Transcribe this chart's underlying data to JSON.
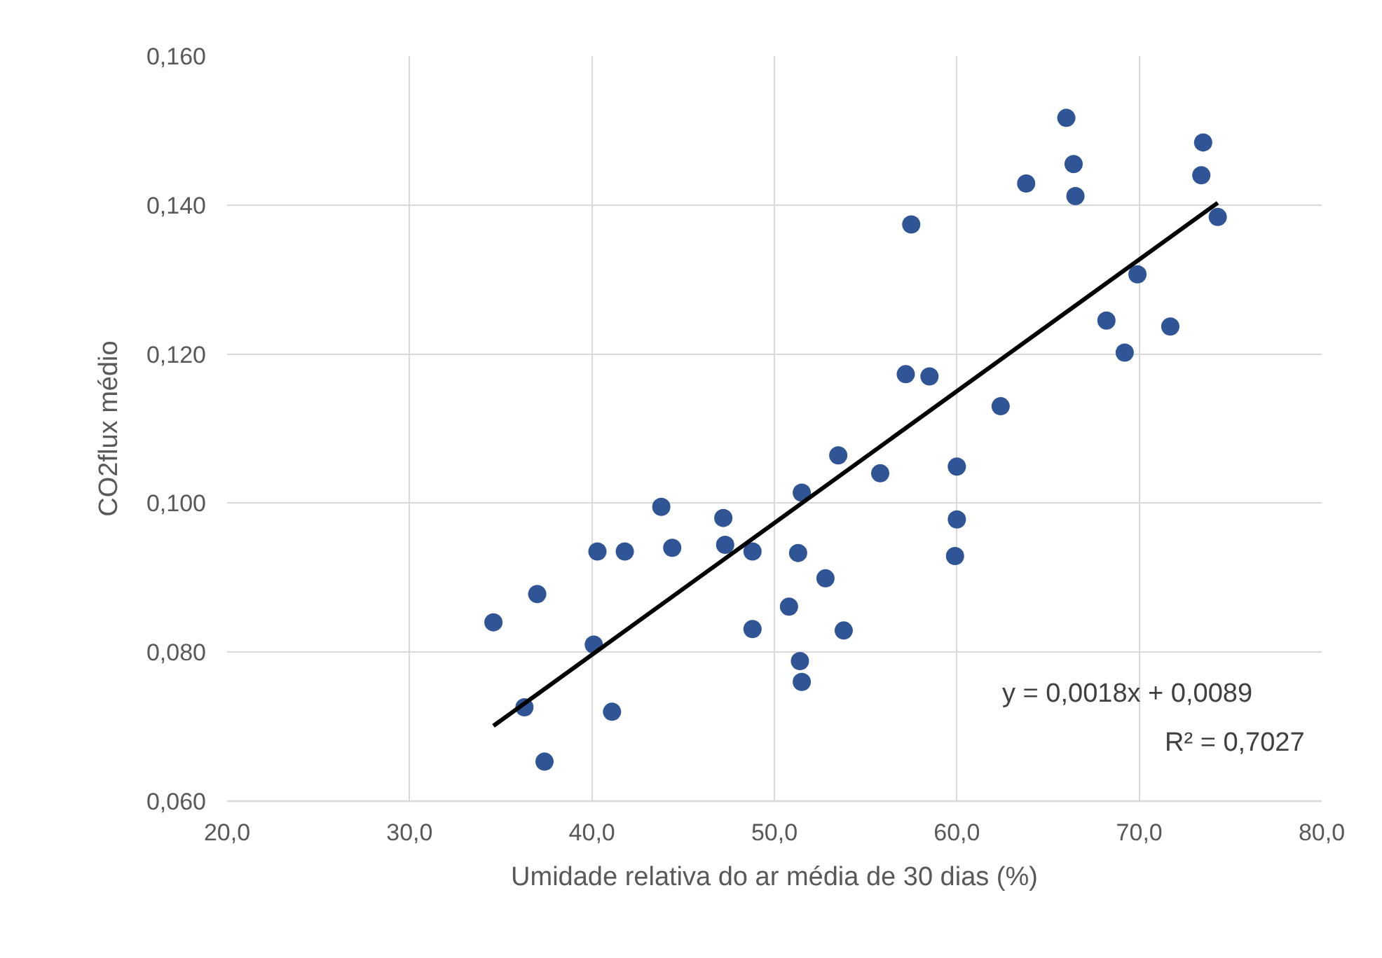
{
  "chart_data": {
    "type": "scatter",
    "xlabel": "Umidade relativa do ar média de 30 dias (%)",
    "ylabel": "CO2flux médio",
    "xlim": [
      20,
      80
    ],
    "xticks": [
      {
        "value": 20,
        "label": "20,0"
      },
      {
        "value": 30,
        "label": "30,0"
      },
      {
        "value": 40,
        "label": "40,0"
      },
      {
        "value": 50,
        "label": "50,0"
      },
      {
        "value": 60,
        "label": "60,0"
      },
      {
        "value": 70,
        "label": "70,0"
      },
      {
        "value": 80,
        "label": "80,0"
      }
    ],
    "ylim": [
      0.06,
      0.16
    ],
    "yticks": [
      {
        "value": 0.06,
        "label": "0,060"
      },
      {
        "value": 0.08,
        "label": "0,080"
      },
      {
        "value": 0.1,
        "label": "0,100"
      },
      {
        "value": 0.12,
        "label": "0,120"
      },
      {
        "value": 0.14,
        "label": "0,140"
      },
      {
        "value": 0.16,
        "label": "0,160"
      }
    ],
    "grid": true,
    "series": [
      {
        "marker": "circle",
        "color": "#2f5597",
        "x": [
          34.6,
          37.0,
          40.3,
          41.8,
          43.8,
          44.4,
          47.2,
          47.3,
          48.8,
          48.8,
          40.1,
          36.3,
          41.1,
          37.4,
          51.3,
          51.5,
          52.8,
          50.8,
          51.4,
          51.5,
          53.8,
          53.5,
          55.8,
          57.5,
          66.0,
          66.4,
          63.8,
          66.5,
          73.5,
          73.4,
          74.3,
          69.9,
          68.2,
          71.7,
          69.2,
          57.2,
          58.5,
          62.4,
          60.0,
          60.0,
          59.9
        ],
        "values": [
          0.084,
          0.0878,
          0.0935,
          0.0935,
          0.0995,
          0.094,
          0.098,
          0.0944,
          0.0935,
          0.0831,
          0.081,
          0.0726,
          0.072,
          0.0653,
          0.0933,
          0.1014,
          0.0899,
          0.0861,
          0.0788,
          0.076,
          0.0829,
          0.1064,
          0.104,
          0.1374,
          0.1517,
          0.1455,
          0.1429,
          0.1412,
          0.1484,
          0.144,
          0.1384,
          0.1307,
          0.1245,
          0.1237,
          0.1202,
          0.1173,
          0.117,
          0.113,
          0.1049,
          0.0978,
          0.0929
        ]
      },
      {
        "type": "line",
        "marker": "none",
        "line_style": "solid",
        "color": "#000000",
        "x": [
          34.6,
          74.3
        ],
        "values": [
          0.0701,
          0.1403
        ]
      }
    ],
    "annotations": [
      "y = 0,0018x + 0,0089",
      "R² = 0,7027"
    ]
  }
}
